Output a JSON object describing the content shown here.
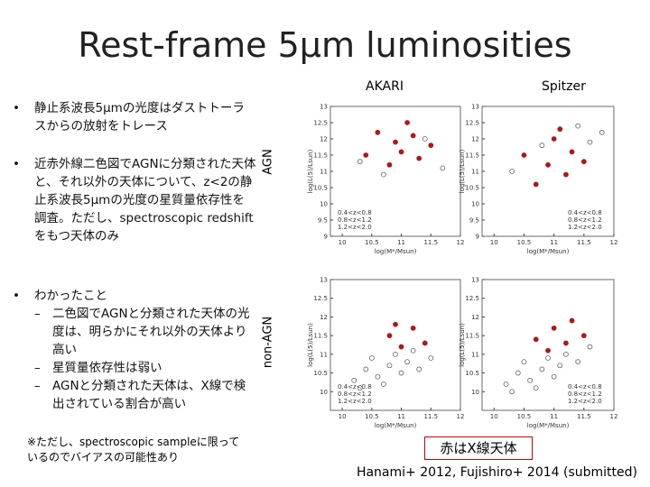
{
  "title": "Rest-frame 5μm luminosities",
  "bullets": [
    {
      "text": "静止系波長5μmの光度はダストトーラスからの放射をトレース"
    },
    {
      "text": "近赤外線二色図でAGNに分類された天体と、それ以外の天体について、z<2の静止系波長5μmの光度の星質量依存性を調査。ただし、spectroscopic redshiftをもつ天体のみ"
    },
    {
      "text": "わかったこと",
      "subs": [
        "二色図でAGNと分類された天体の光度は、明らかにそれ以外の天体より高い",
        "星質量依存性は弱い",
        "AGNと分類された天体は、X線で検出されている割合が高い"
      ]
    }
  ],
  "note": "※ただし、spectroscopic sampleに限っているのでバイアスの可能性あり",
  "column_labels": [
    "AKARI",
    "Spitzer"
  ],
  "row_labels": [
    "AGN",
    "non-AGN"
  ],
  "callout": "赤はX線天体",
  "citation": "Hanami+ 2012, Fujishiro+ 2014 (submitted)",
  "panels": [
    {
      "xlabel": "log(M*/Msun)",
      "ylabel": "log(L(5)/Lsun)",
      "xlim": [
        9.8,
        12
      ],
      "ylim": [
        9,
        13
      ],
      "xticks": [
        10,
        10.5,
        11,
        11.5,
        12
      ],
      "yticks": [
        9,
        9.5,
        10,
        10.5,
        11,
        11.5,
        12,
        12.5,
        13
      ],
      "legend": [
        "0.4<z<0.8",
        "0.8<z<1.2",
        "1.2<z<2.0"
      ],
      "groups": [
        {
          "color": "#b01818",
          "x": [
            10.6,
            10.9,
            11.0,
            11.2,
            11.3,
            10.8,
            11.5,
            10.4,
            11.1
          ],
          "y": [
            12.2,
            11.9,
            11.6,
            12.1,
            11.4,
            11.2,
            11.8,
            11.5,
            12.5
          ]
        },
        {
          "color": "#666666",
          "x": [
            10.3,
            11.4,
            11.7,
            10.7
          ],
          "y": [
            11.3,
            12.0,
            11.1,
            10.9
          ]
        }
      ]
    },
    {
      "xlabel": "log(M*/Msun)",
      "ylabel": "log(L(5)/Lsun)",
      "xlim": [
        9.8,
        12
      ],
      "ylim": [
        9,
        13
      ],
      "xticks": [
        10,
        10.5,
        11,
        11.5,
        12
      ],
      "yticks": [
        9,
        9.5,
        10,
        10.5,
        11,
        11.5,
        12,
        12.5,
        13
      ],
      "legend": [
        "0.4<z<0.8",
        "0.8<z<1.2",
        "1.2<z<2.0"
      ],
      "groups": [
        {
          "color": "#b01818",
          "x": [
            10.5,
            10.9,
            11.0,
            11.3,
            11.2,
            10.7,
            11.5,
            11.1
          ],
          "y": [
            11.5,
            11.2,
            12.0,
            11.6,
            10.9,
            10.6,
            11.3,
            12.3
          ]
        },
        {
          "color": "#666666",
          "x": [
            10.3,
            11.6,
            11.8,
            10.8,
            11.4
          ],
          "y": [
            11.0,
            11.9,
            12.2,
            11.8,
            12.4
          ]
        }
      ]
    },
    {
      "xlabel": "log(M*/Msun)",
      "ylabel": "log(L(5)/Lsun)",
      "xlim": [
        9.8,
        12
      ],
      "ylim": [
        9.5,
        13
      ],
      "xticks": [
        10,
        10.5,
        11,
        11.5,
        12
      ],
      "yticks": [
        10,
        10.5,
        11,
        11.5,
        12,
        12.5,
        13
      ],
      "legend": [
        "0.4<z<0.8",
        "0.8<z<1.2",
        "1.2<z<2.0"
      ],
      "groups": [
        {
          "color": "#b01818",
          "x": [
            10.8,
            11.0,
            11.2,
            11.4,
            10.9
          ],
          "y": [
            11.5,
            11.2,
            11.7,
            11.3,
            11.8
          ]
        },
        {
          "color": "#666666",
          "x": [
            10.2,
            10.4,
            10.5,
            10.6,
            10.8,
            10.9,
            11.0,
            11.1,
            11.2,
            11.3,
            10.3,
            10.7,
            11.5
          ],
          "y": [
            10.3,
            10.6,
            10.9,
            10.4,
            10.7,
            11.0,
            10.5,
            10.8,
            11.1,
            10.6,
            10.1,
            10.2,
            10.9
          ]
        }
      ]
    },
    {
      "xlabel": "log(M*/Msun)",
      "ylabel": "log(L(5)/Lsun)",
      "xlim": [
        9.8,
        12
      ],
      "ylim": [
        9.5,
        13
      ],
      "xticks": [
        10,
        10.5,
        11,
        11.5,
        12
      ],
      "yticks": [
        10,
        10.5,
        11,
        11.5,
        12,
        12.5,
        13
      ],
      "legend": [
        "0.4<z<0.8",
        "0.8<z<1.2",
        "1.2<z<2.0"
      ],
      "groups": [
        {
          "color": "#b01818",
          "x": [
            10.7,
            11.0,
            11.2,
            11.3,
            10.9,
            11.5
          ],
          "y": [
            11.4,
            11.7,
            11.3,
            11.9,
            11.1,
            11.5
          ]
        },
        {
          "color": "#666666",
          "x": [
            10.2,
            10.4,
            10.5,
            10.6,
            10.8,
            10.9,
            11.0,
            11.1,
            11.2,
            11.4,
            10.3,
            10.7,
            11.6
          ],
          "y": [
            10.2,
            10.5,
            10.8,
            10.3,
            10.6,
            10.9,
            10.4,
            10.7,
            11.0,
            10.8,
            10.0,
            10.1,
            11.2
          ]
        }
      ]
    }
  ]
}
